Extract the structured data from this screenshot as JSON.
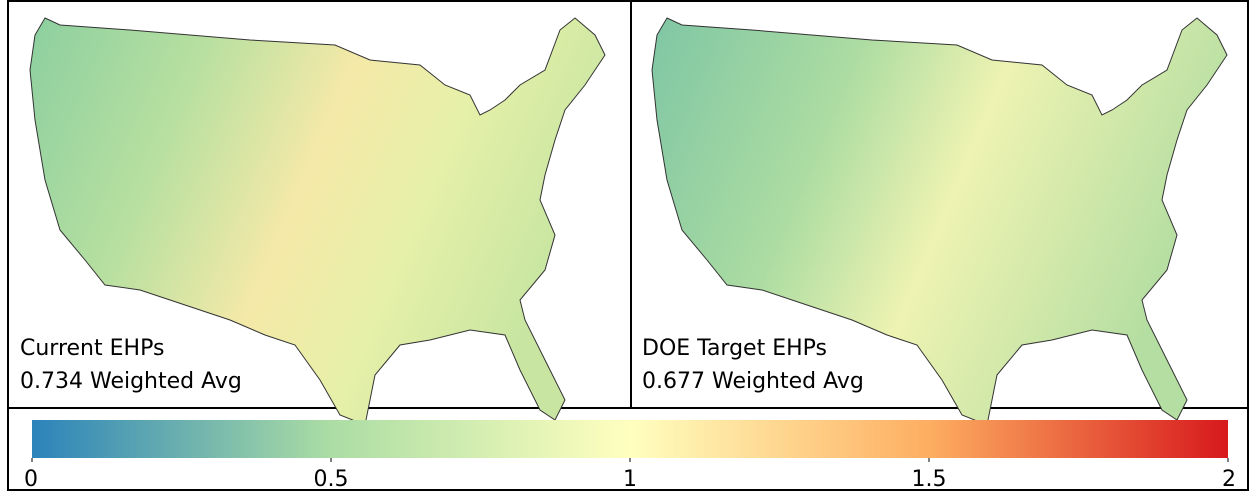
{
  "panels": [
    {
      "title": "Current EHPs",
      "caption": "0.734 Weighted Avg"
    },
    {
      "title": "DOE Target EHPs",
      "caption": "0.677 Weighted Avg"
    }
  ],
  "colorbar": {
    "range": [
      0,
      2
    ],
    "ticks": [
      0,
      0.5,
      1,
      1.5,
      2
    ],
    "colors": [
      "#2b83ba",
      "#abdda4",
      "#ffffbf",
      "#fdae61",
      "#d7191c"
    ]
  }
}
